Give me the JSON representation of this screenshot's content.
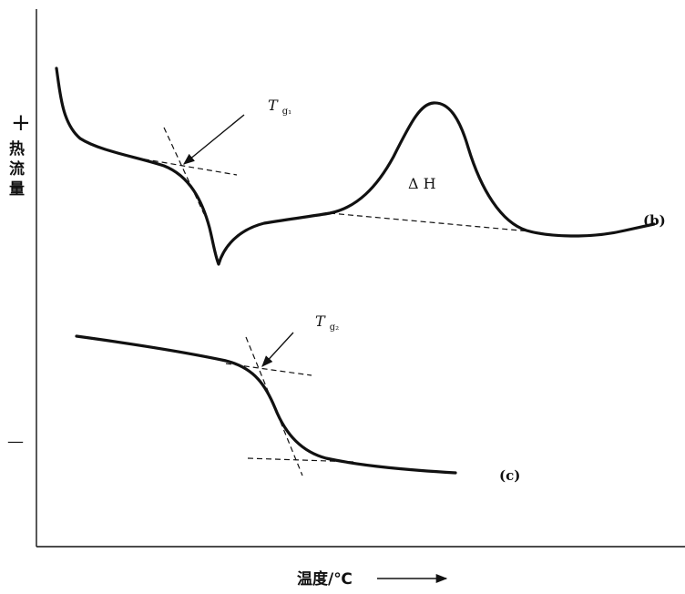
{
  "y_axis": {
    "plus": "+",
    "label_chars": [
      "热",
      "流",
      "量"
    ],
    "minus": "—"
  },
  "x_axis": {
    "label": "温度/℃"
  },
  "annotations": {
    "tg1_main": "T",
    "tg1_sub": "g₁",
    "tg2_main": "T",
    "tg2_sub": "g₂",
    "delta_h": "Δ H",
    "curve_b": "(b)",
    "curve_c": "(c)"
  }
}
